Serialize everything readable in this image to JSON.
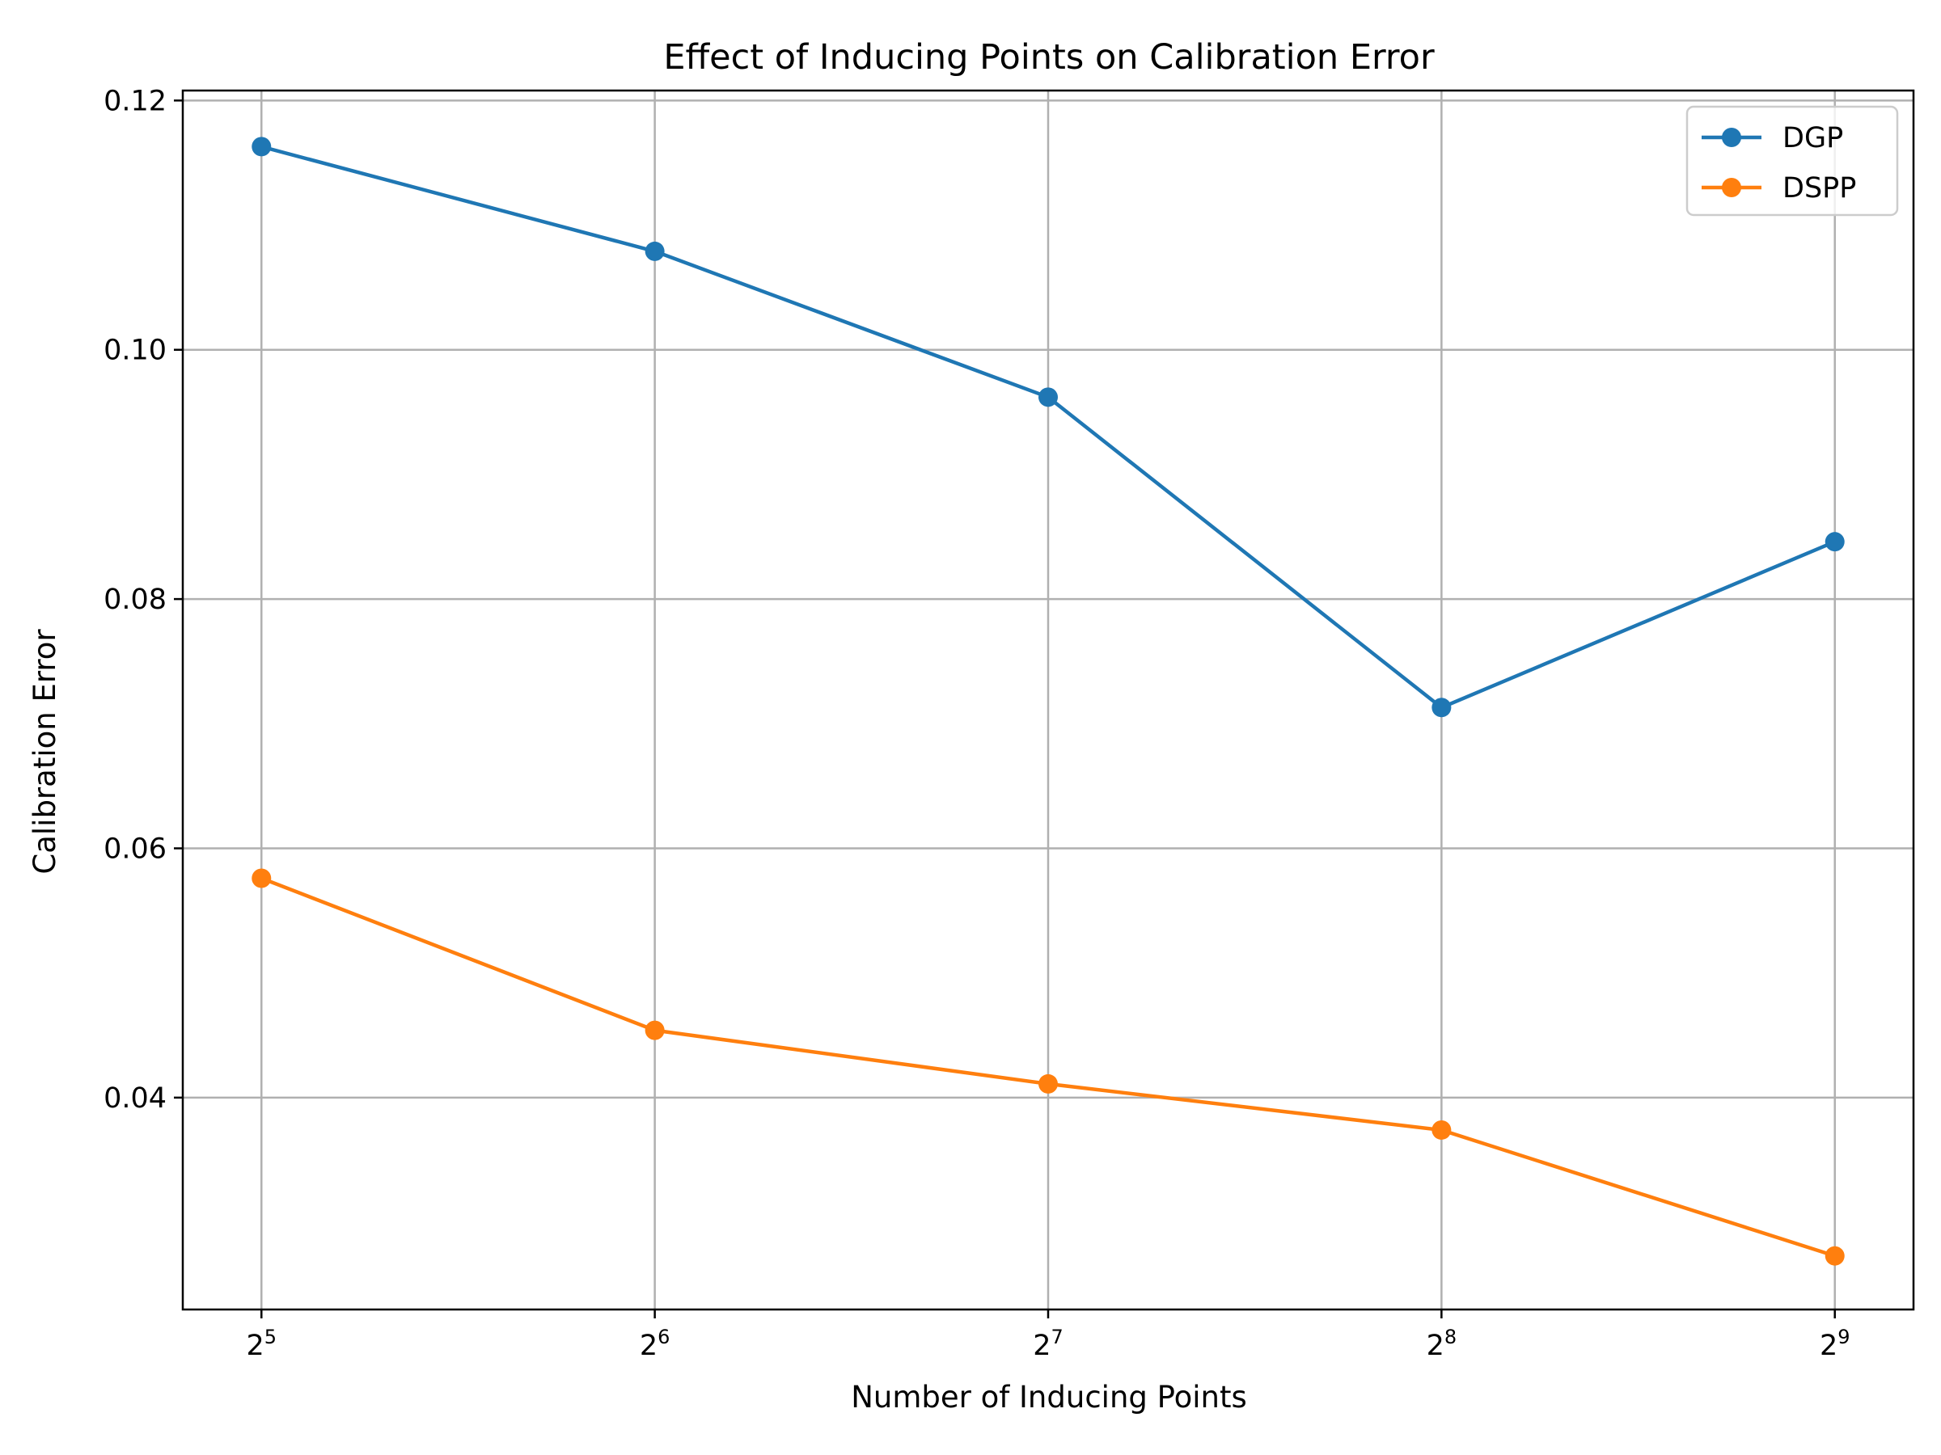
{
  "chart_data": {
    "type": "line",
    "title": "Effect of Inducing Points on Calibration Error",
    "xlabel": "Number of Inducing Points",
    "ylabel": "Calibration Error",
    "x": [
      32,
      64,
      128,
      256,
      512
    ],
    "x_scale": "log2",
    "x_ticks": [
      {
        "value": 32,
        "base": "2",
        "exp": "5"
      },
      {
        "value": 64,
        "base": "2",
        "exp": "6"
      },
      {
        "value": 128,
        "base": "2",
        "exp": "7"
      },
      {
        "value": 256,
        "base": "2",
        "exp": "8"
      },
      {
        "value": 512,
        "base": "2",
        "exp": "9"
      }
    ],
    "y_ticks": [
      {
        "value": 0.04,
        "label": "0.04"
      },
      {
        "value": 0.06,
        "label": "0.06"
      },
      {
        "value": 0.08,
        "label": "0.08"
      },
      {
        "value": 0.1,
        "label": "0.10"
      },
      {
        "value": 0.12,
        "label": "0.12"
      }
    ],
    "ylim": [
      0.023,
      0.1208
    ],
    "grid": true,
    "legend_position": "top-right",
    "series": [
      {
        "name": "DGP",
        "color": "#1f77b4",
        "values": [
          0.1163,
          0.1079,
          0.0962,
          0.0713,
          0.0846
        ]
      },
      {
        "name": "DSPP",
        "color": "#ff7f0e",
        "values": [
          0.0576,
          0.0454,
          0.0411,
          0.0374,
          0.0273
        ]
      }
    ]
  }
}
